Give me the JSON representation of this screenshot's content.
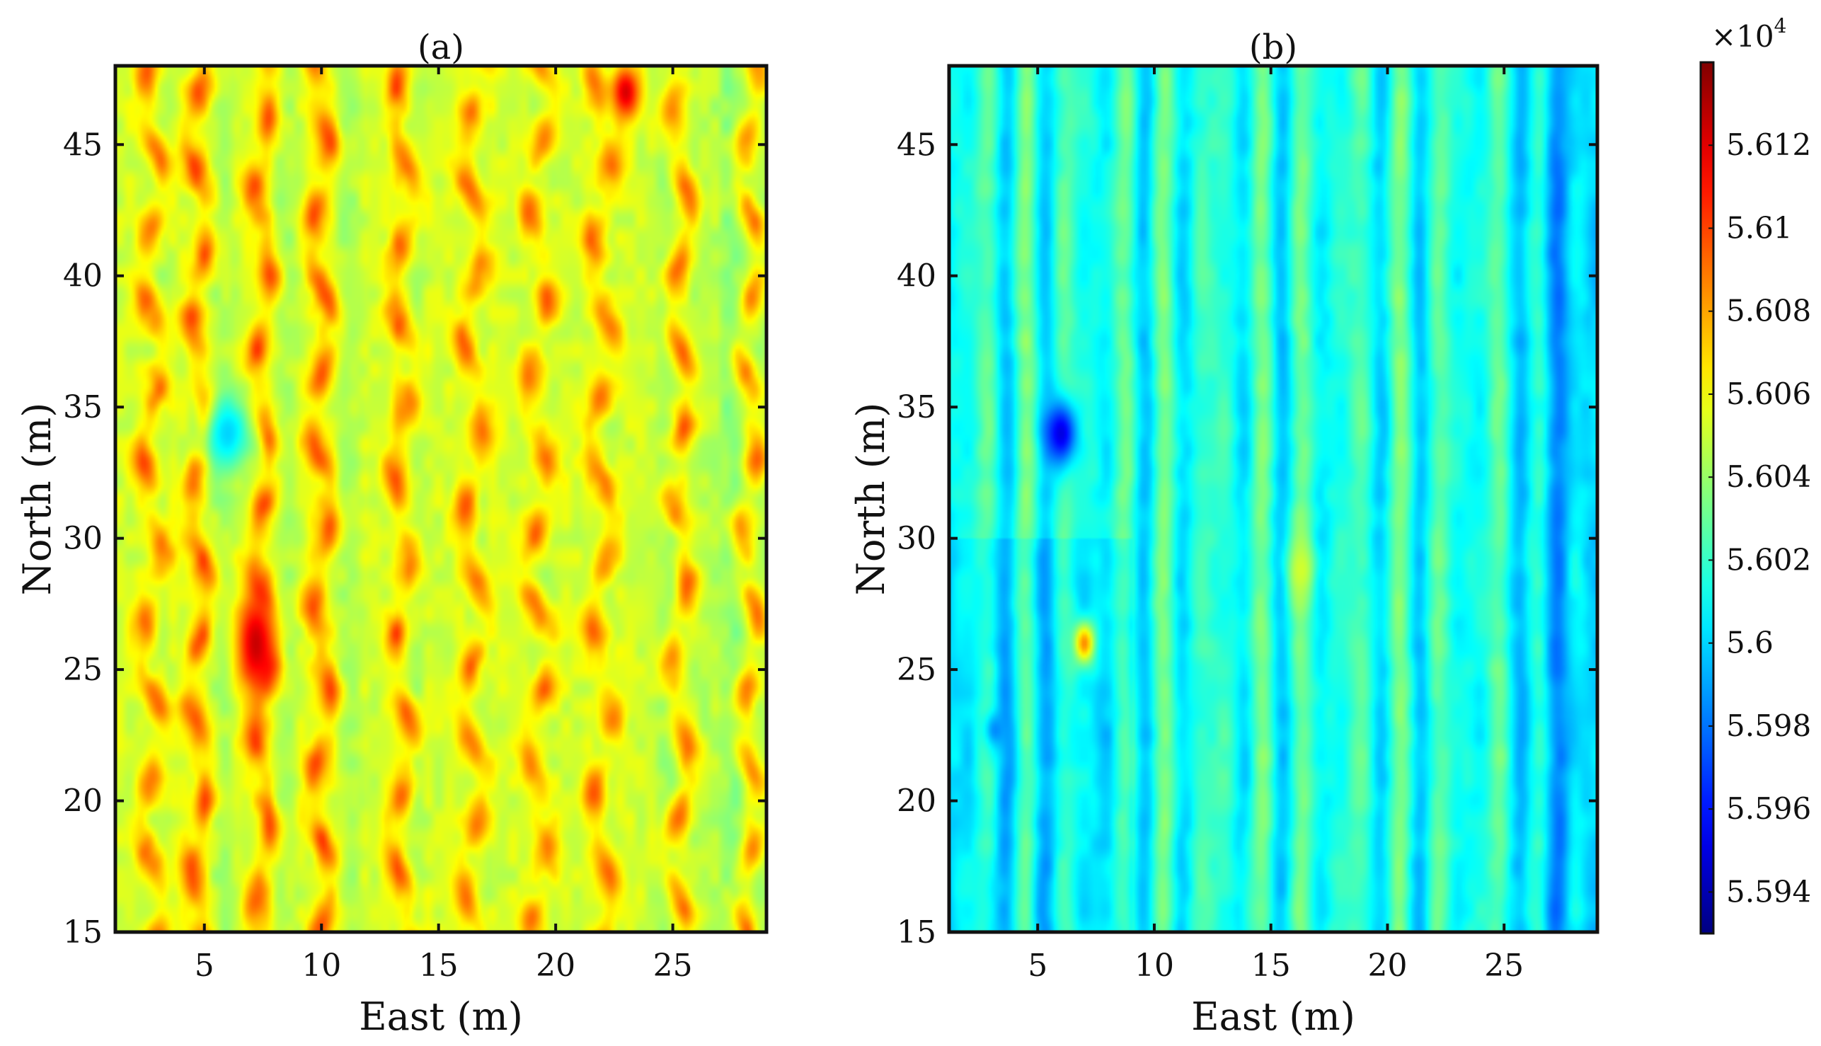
{
  "chart_data": [
    {
      "type": "heatmap",
      "title": "(a)",
      "xlabel": "East (m)",
      "ylabel": "North (m)",
      "xlim": [
        1.2,
        29
      ],
      "ylim": [
        15,
        48
      ],
      "xticks": [
        5,
        10,
        15,
        20,
        25
      ],
      "yticks": [
        15,
        20,
        25,
        30,
        35,
        40,
        45
      ],
      "xtick_labels": [
        "5",
        "10",
        "15",
        "20",
        "25"
      ],
      "ytick_labels": [
        "15",
        "20",
        "25",
        "30",
        "35",
        "40",
        "45"
      ],
      "grid": false,
      "colormap": "jet",
      "value_range": [
        55930,
        56140
      ],
      "background_value": 56052,
      "stripe_period_east_m": 3.0,
      "stripe_amplitude": 45,
      "high_stripes_east_m": [
        2.8,
        4.8,
        7.5,
        10.0,
        13.5,
        16.5,
        19.3,
        22.0,
        25.3,
        28.3
      ],
      "anomalies": [
        {
          "east": 6.0,
          "north": 34.0,
          "value": 56000,
          "radius_east": 1.0,
          "radius_north": 1.5
        },
        {
          "east": 7.2,
          "north": 26.0,
          "value": 56125,
          "radius_east": 0.8,
          "radius_north": 2.0
        },
        {
          "east": 23.0,
          "north": 47.0,
          "value": 56122,
          "radius_east": 0.6,
          "radius_north": 1.0
        }
      ]
    },
    {
      "type": "heatmap",
      "title": "(b)",
      "xlabel": "East (m)",
      "ylabel": "North (m)",
      "xlim": [
        1.2,
        29
      ],
      "ylim": [
        15,
        48
      ],
      "xticks": [
        5,
        10,
        15,
        20,
        25
      ],
      "yticks": [
        15,
        20,
        25,
        30,
        35,
        40,
        45
      ],
      "xtick_labels": [
        "5",
        "10",
        "15",
        "20",
        "25"
      ],
      "ytick_labels": [
        "15",
        "20",
        "25",
        "30",
        "35",
        "40",
        "45"
      ],
      "grid": false,
      "colormap": "jet",
      "value_range": [
        55930,
        56140
      ],
      "background_value": 56016,
      "stripe_period_east_m": 2.0,
      "stripe_amplitude": 12,
      "low_zone_east_m": [
        25.5,
        29
      ],
      "anomalies": [
        {
          "east": 6.0,
          "north": 34.0,
          "value": 55950,
          "radius_east": 0.7,
          "radius_north": 1.2
        },
        {
          "east": 7.0,
          "north": 26.0,
          "value": 56085,
          "radius_east": 0.45,
          "radius_north": 0.8
        },
        {
          "east": 16.3,
          "north": 28.8,
          "value": 56052,
          "radius_east": 0.6,
          "radius_north": 1.2
        },
        {
          "east": 3.2,
          "north": 22.7,
          "value": 55985,
          "radius_east": 0.5,
          "radius_north": 0.7
        }
      ]
    },
    {
      "type": "colorbar",
      "exponent_label": "×10",
      "exponent_power": "4",
      "ticks": [
        5.594,
        5.596,
        5.598,
        5.6,
        5.602,
        5.604,
        5.606,
        5.608,
        5.61,
        5.612
      ],
      "tick_labels": [
        "5.594",
        "5.596",
        "5.598",
        "5.6",
        "5.602",
        "5.604",
        "5.606",
        "5.608",
        "5.61",
        "5.612"
      ],
      "range": [
        5.593,
        5.614
      ],
      "colormap": "jet"
    }
  ]
}
